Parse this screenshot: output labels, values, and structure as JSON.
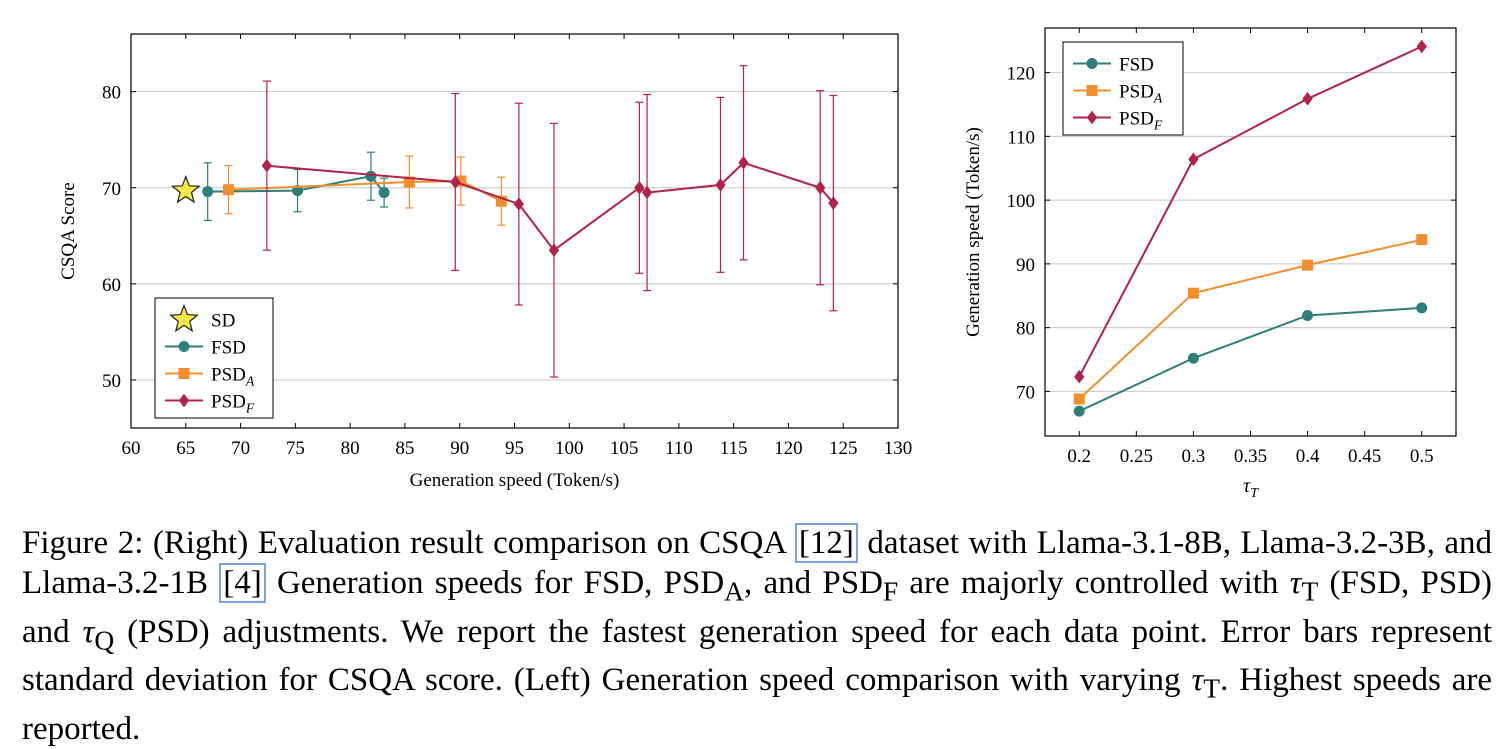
{
  "chart_data": [
    {
      "type": "line",
      "title": "",
      "xlabel": "Generation speed (Token/s)",
      "ylabel": "CSQA Score",
      "xlim": [
        60,
        130
      ],
      "ylim": [
        45,
        86
      ],
      "xticks": [
        60,
        65,
        70,
        75,
        80,
        85,
        90,
        95,
        100,
        105,
        110,
        115,
        120,
        125,
        130
      ],
      "yticks": [
        50,
        60,
        70,
        80
      ],
      "grid": "horizontal",
      "legend_position": "bottom-left",
      "series": [
        {
          "name": "SD",
          "marker": "star",
          "color": "#f7e84a",
          "points": [
            {
              "x": 65,
              "y": 69.7
            }
          ]
        },
        {
          "name": "FSD",
          "marker": "circle",
          "color": "#2e7f7a",
          "points": [
            {
              "x": 67,
              "y": 69.6,
              "err": 3.0
            },
            {
              "x": 75.2,
              "y": 69.7,
              "err": 2.2
            },
            {
              "x": 81.9,
              "y": 71.2,
              "err": 2.5
            },
            {
              "x": 83.1,
              "y": 69.5,
              "err": 1.5
            }
          ]
        },
        {
          "name": "PSD_A",
          "label_base": "PSD",
          "label_sub": "A",
          "marker": "square",
          "color": "#f28e2b",
          "points": [
            {
              "x": 68.9,
              "y": 69.8,
              "err": 2.5
            },
            {
              "x": 85.4,
              "y": 70.6,
              "err": 2.7
            },
            {
              "x": 90.1,
              "y": 70.7,
              "err": 2.5
            },
            {
              "x": 93.8,
              "y": 68.6,
              "err": 2.5
            }
          ]
        },
        {
          "name": "PSD_F",
          "label_base": "PSD",
          "label_sub": "F",
          "marker": "diamond",
          "color": "#b0234a",
          "points": [
            {
              "x": 72.4,
              "y": 72.3,
              "err": 8.8
            },
            {
              "x": 89.6,
              "y": 70.6,
              "err": 9.2
            },
            {
              "x": 95.4,
              "y": 68.3,
              "err": 10.5
            },
            {
              "x": 98.6,
              "y": 63.5,
              "err": 13.2
            },
            {
              "x": 106.4,
              "y": 70.0,
              "err": 8.9
            },
            {
              "x": 107.1,
              "y": 69.5,
              "err": 10.2
            },
            {
              "x": 113.8,
              "y": 70.3,
              "err": 9.1
            },
            {
              "x": 115.9,
              "y": 72.6,
              "err": 10.1
            },
            {
              "x": 122.9,
              "y": 70.0,
              "err": 10.1
            },
            {
              "x": 124.1,
              "y": 68.4,
              "err": 11.2
            }
          ]
        }
      ]
    },
    {
      "type": "line",
      "title": "",
      "xlabel": "τT",
      "xlabel_base": "τ",
      "xlabel_sub": "T",
      "ylabel": "Generation speed (Token/s)",
      "xlim": [
        0.17,
        0.53
      ],
      "ylim": [
        63,
        127
      ],
      "xticks": [
        0.2,
        0.25,
        0.3,
        0.35,
        0.4,
        0.45,
        0.5
      ],
      "yticks": [
        70,
        80,
        90,
        100,
        110,
        120
      ],
      "grid": "horizontal",
      "legend_position": "top-left",
      "series": [
        {
          "name": "FSD",
          "marker": "circle",
          "color": "#2e7f7a",
          "points": [
            {
              "x": 0.2,
              "y": 66.9
            },
            {
              "x": 0.3,
              "y": 75.2
            },
            {
              "x": 0.4,
              "y": 81.9
            },
            {
              "x": 0.5,
              "y": 83.1
            }
          ]
        },
        {
          "name": "PSD_A",
          "label_base": "PSD",
          "label_sub": "A",
          "marker": "square",
          "color": "#f28e2b",
          "points": [
            {
              "x": 0.2,
              "y": 68.8
            },
            {
              "x": 0.3,
              "y": 85.4
            },
            {
              "x": 0.4,
              "y": 89.8
            },
            {
              "x": 0.5,
              "y": 93.8
            }
          ]
        },
        {
          "name": "PSD_F",
          "label_base": "PSD",
          "label_sub": "F",
          "marker": "diamond",
          "color": "#b0234a",
          "points": [
            {
              "x": 0.2,
              "y": 72.3
            },
            {
              "x": 0.3,
              "y": 106.4
            },
            {
              "x": 0.4,
              "y": 115.9
            },
            {
              "x": 0.5,
              "y": 124.1
            }
          ]
        }
      ]
    }
  ],
  "caption": {
    "p1": "Figure 2: (Right) Evaluation result comparison on CSQA ",
    "cite1": "[12]",
    "p2": " dataset with Llama-3.1-8B, Llama-3.2-3B, and Llama-3.2-1B ",
    "cite2": "[4]",
    "p3": " Generation speeds for FSD, PSD",
    "sub_a": "A",
    "p4": ", and PSD",
    "sub_f": "F",
    "p5": " are majorly controlled with ",
    "tau": "τ",
    "sub_t": "T",
    "p6": " (FSD, PSD) and ",
    "tau2": "τ",
    "sub_q": "Q",
    "p7": " (PSD) adjustments. We report the fastest generation speed for each data point. Error bars represent standard deviation for CSQA score. (Left) Generation speed comparison with varying ",
    "tau3": "τ",
    "sub_t2": "T",
    "p8": ". Highest speeds are reported."
  }
}
